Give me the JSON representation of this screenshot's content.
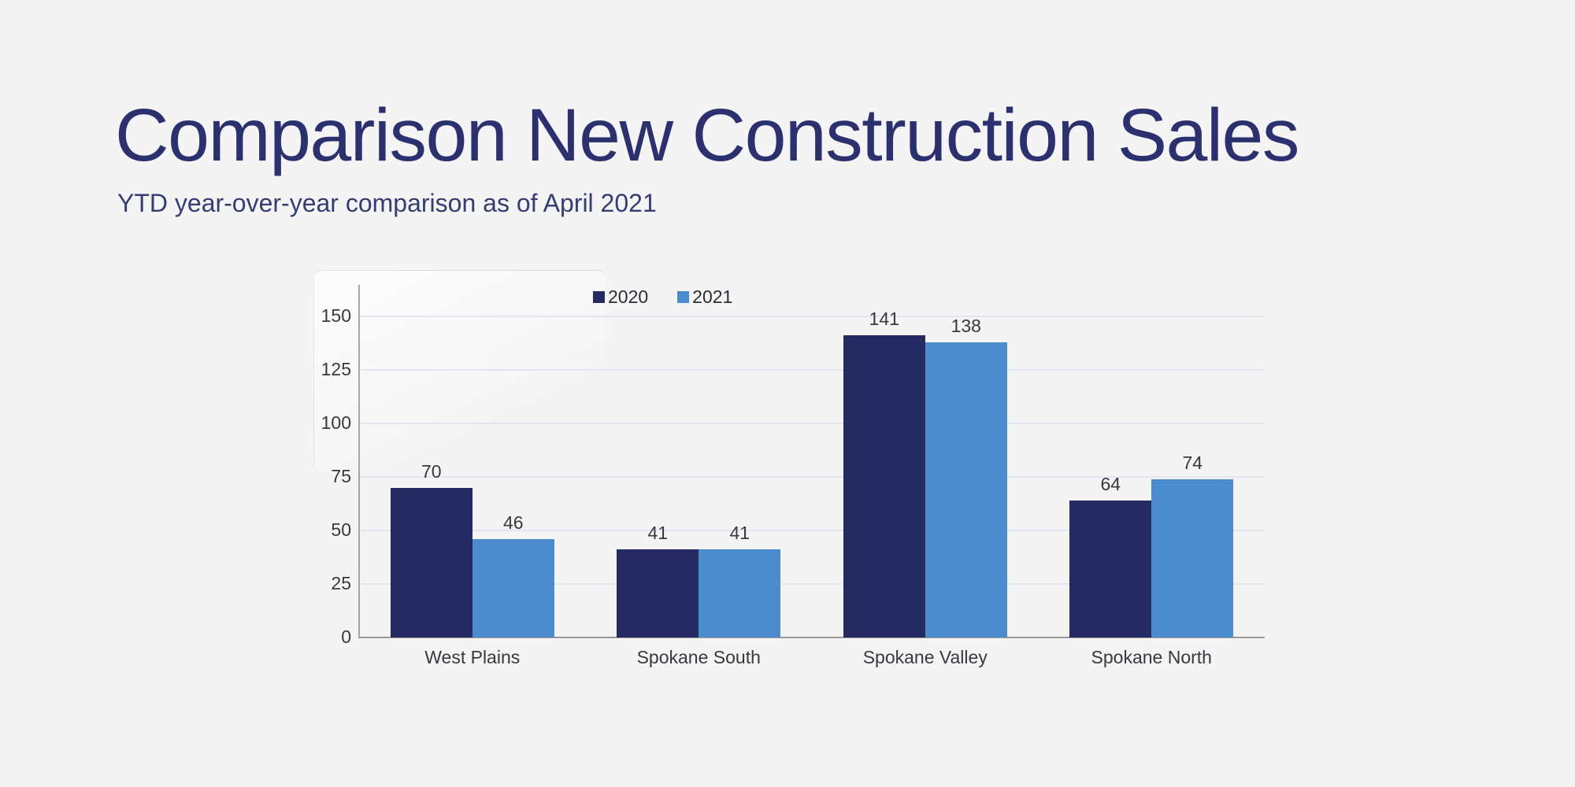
{
  "title": "Comparison New Construction Sales",
  "subtitle": "YTD year-over-year comparison as of April 2021",
  "colors": {
    "background": "#f4f4f5",
    "title_text": "#2b316f",
    "subtitle_text": "#343d74",
    "series_2020": "#262a63",
    "series_2021": "#4a8ccd",
    "gridline": "#e3e5f0",
    "axis_line": "#a7a7a9",
    "baseline": "#98989a",
    "label_text": "#39393b"
  },
  "chart_data": {
    "type": "bar",
    "title": "Comparison New Construction Sales",
    "subtitle": "YTD year-over-year comparison as of April 2021",
    "categories": [
      "West Plains",
      "Spokane South",
      "Spokane Valley",
      "Spokane North"
    ],
    "series": [
      {
        "name": "2020",
        "color": "#262a63",
        "values": [
          70,
          41,
          141,
          64
        ]
      },
      {
        "name": "2021",
        "color": "#4a8ccd",
        "values": [
          46,
          41,
          138,
          74
        ]
      }
    ],
    "xlabel": "",
    "ylabel": "",
    "ylim": [
      0,
      150
    ],
    "yticks": [
      0,
      25,
      50,
      75,
      100,
      125,
      150
    ],
    "grid": "horizontal",
    "legend_position": "top-center",
    "value_labels": true
  }
}
